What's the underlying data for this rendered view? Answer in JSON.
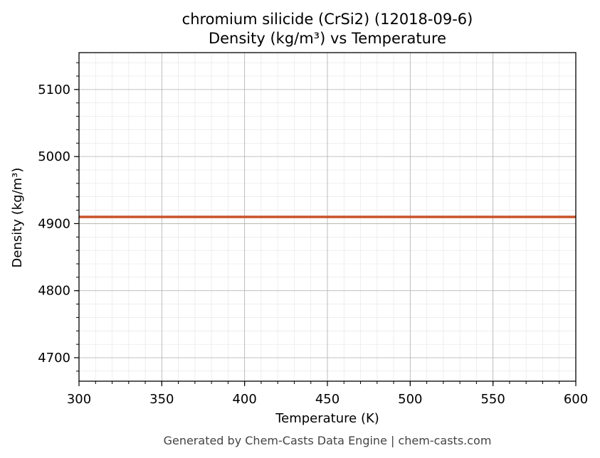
{
  "chart_data": {
    "type": "line",
    "title_line1": "chromium silicide (CrSi2) (12018-09-6)",
    "title_line2": "Density (kg/m³) vs Temperature",
    "xlabel": "Temperature (K)",
    "ylabel": "Density (kg/m³)",
    "xlim": [
      300,
      600
    ],
    "ylim": [
      4665,
      5155
    ],
    "xticks": [
      300,
      350,
      400,
      450,
      500,
      550,
      600
    ],
    "yticks": [
      4700,
      4800,
      4900,
      5000,
      5100
    ],
    "grid": true,
    "series": [
      {
        "color": "#c8532a",
        "x": [
          300,
          600
        ],
        "y": [
          4910,
          4910
        ]
      }
    ]
  },
  "footer": "Generated by Chem-Casts Data Engine | chem-casts.com"
}
